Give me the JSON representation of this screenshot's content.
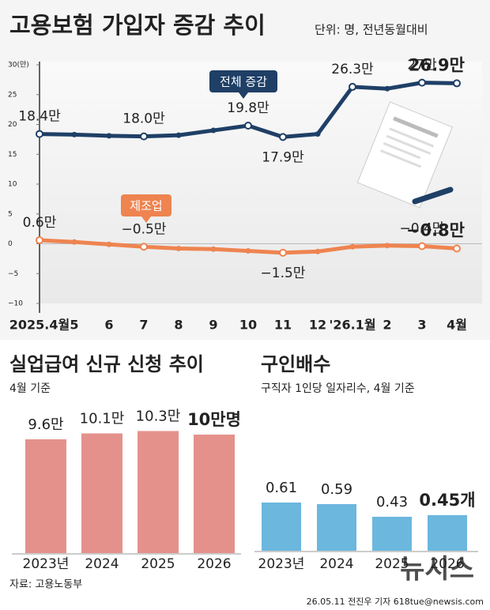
{
  "chart_data": [
    {
      "type": "line",
      "title": "고용보험 가입자 증감 추이",
      "subtitle": "단위: 명, 전년동월대비",
      "categories": [
        "2025.4월",
        "5",
        "6",
        "7",
        "8",
        "9",
        "10",
        "11",
        "12",
        "'26.1월",
        "2",
        "3",
        "4월"
      ],
      "series": [
        {
          "name": "전체 증감",
          "color": "#1f3f66",
          "values": [
            18.4,
            18.3,
            18.1,
            18.0,
            18.2,
            19.0,
            19.8,
            17.9,
            18.4,
            26.3,
            26.0,
            27,
            26.9
          ],
          "value_labels": [
            "18.4만",
            null,
            null,
            "18.0만",
            null,
            null,
            "19.8만",
            "17.9만",
            null,
            "26.3만",
            null,
            "27만",
            "26.9만"
          ]
        },
        {
          "name": "제조업",
          "color": "#ee8450",
          "values": [
            0.6,
            0.3,
            -0.1,
            -0.5,
            -0.8,
            -0.9,
            -1.2,
            -1.5,
            -1.3,
            -0.5,
            -0.3,
            -0.4,
            -0.8
          ],
          "value_labels": [
            "0.6만",
            null,
            null,
            "−0.5만",
            null,
            null,
            null,
            "−1.5만",
            null,
            null,
            null,
            "−0.4만",
            "−0.8만"
          ]
        }
      ],
      "ylim": [
        -10,
        30
      ],
      "yticks": [
        {
          "value": 30,
          "label": "30(만)"
        },
        25,
        20,
        15,
        10,
        5,
        0,
        {
          "value": -5,
          "label": "−5"
        },
        {
          "value": -10,
          "label": "−10"
        }
      ]
    },
    {
      "type": "bar",
      "title": "실업급여 신규 신청 추이",
      "subtitle": "4월 기준",
      "categories": [
        "2023년",
        "2024",
        "2025",
        "2026"
      ],
      "values": [
        9.6,
        10.1,
        10.3,
        10
      ],
      "value_labels": [
        "9.6만",
        "10.1만",
        "10.3만",
        "10만명"
      ],
      "color": "#e4918b"
    },
    {
      "type": "bar",
      "title": "구인배수",
      "subtitle": "구직자 1인당 일자리수, 4월 기준",
      "categories": [
        "2023년",
        "2024",
        "2025",
        "2026"
      ],
      "values": [
        0.61,
        0.59,
        0.43,
        0.45
      ],
      "value_labels": [
        "0.61",
        "0.59",
        "0.43",
        "0.45개"
      ],
      "color": "#6bb7de"
    }
  ],
  "source": "자료: 고용노동부",
  "credit": "26.05.11 전진우 기자 618tue@newsis.com",
  "watermark": "뉴시스"
}
